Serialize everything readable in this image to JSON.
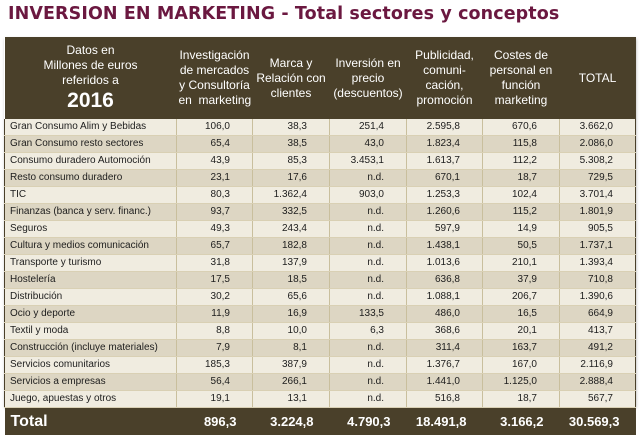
{
  "title": "INVERSION EN MARKETING - Total sectores y conceptos",
  "colors": {
    "title": "#6b1840",
    "header_bg": "#4a402a",
    "row_light": "#f0ece0",
    "row_dark": "#ddd6c3"
  },
  "table": {
    "corner": {
      "lines": [
        "Datos en",
        "Millones de euros",
        "referidos a"
      ],
      "year": "2016"
    },
    "columns": [
      {
        "lines": [
          "Investigación",
          "de mercados",
          "y Consultoría",
          "en  marketing"
        ]
      },
      {
        "lines": [
          "Marca y",
          "Relación con",
          "clientes"
        ]
      },
      {
        "lines": [
          "Inversión en",
          "precio",
          "(descuentos)"
        ]
      },
      {
        "lines": [
          "Publicidad,",
          "comuni-",
          "cación,",
          "promoción"
        ]
      },
      {
        "lines": [
          "Costes de",
          "personal en",
          "función",
          "marketing"
        ]
      },
      {
        "lines": [
          "TOTAL"
        ]
      }
    ],
    "rows": [
      {
        "label": "Gran Consumo Alim y Bebidas",
        "values": [
          "106,0",
          "38,3",
          "251,4",
          "2.595,8",
          "670,6",
          "3.662,0"
        ]
      },
      {
        "label": "Gran Consumo resto sectores",
        "values": [
          "65,4",
          "38,5",
          "43,0",
          "1.823,4",
          "115,8",
          "2.086,0"
        ]
      },
      {
        "label": "Consumo duradero Automoción",
        "values": [
          "43,9",
          "85,3",
          "3.453,1",
          "1.613,7",
          "112,2",
          "5.308,2"
        ]
      },
      {
        "label": "Resto consumo duradero",
        "values": [
          "23,1",
          "17,6",
          "n.d.",
          "670,1",
          "18,7",
          "729,5"
        ]
      },
      {
        "label": "TIC",
        "values": [
          "80,3",
          "1.362,4",
          "903,0",
          "1.253,3",
          "102,4",
          "3.701,4"
        ]
      },
      {
        "label": "Finanzas (banca y serv. financ.)",
        "values": [
          "93,7",
          "332,5",
          "n.d.",
          "1.260,6",
          "115,2",
          "1.801,9"
        ]
      },
      {
        "label": "Seguros",
        "values": [
          "49,3",
          "243,4",
          "n.d.",
          "597,9",
          "14,9",
          "905,5"
        ]
      },
      {
        "label": "Cultura y medios comunicación",
        "values": [
          "65,7",
          "182,8",
          "n.d.",
          "1.438,1",
          "50,5",
          "1.737,1"
        ]
      },
      {
        "label": "Transporte y turismo",
        "values": [
          "31,8",
          "137,9",
          "n.d.",
          "1.013,6",
          "210,1",
          "1.393,4"
        ]
      },
      {
        "label": "Hostelería",
        "values": [
          "17,5",
          "18,5",
          "n.d.",
          "636,8",
          "37,9",
          "710,8"
        ]
      },
      {
        "label": "Distribución",
        "values": [
          "30,2",
          "65,6",
          "n.d.",
          "1.088,1",
          "206,7",
          "1.390,6"
        ]
      },
      {
        "label": "Ocio y deporte",
        "values": [
          "11,9",
          "16,9",
          "133,5",
          "486,0",
          "16,5",
          "664,9"
        ]
      },
      {
        "label": "Textil y moda",
        "values": [
          "8,8",
          "10,0",
          "6,3",
          "368,6",
          "20,1",
          "413,7"
        ]
      },
      {
        "label": "Construcción (incluye materiales)",
        "values": [
          "7,9",
          "8,1",
          "n.d.",
          "311,4",
          "163,7",
          "491,2"
        ]
      },
      {
        "label": "Servicios comunitarios",
        "values": [
          "185,3",
          "387,9",
          "n.d.",
          "1.376,7",
          "167,0",
          "2.116,9"
        ]
      },
      {
        "label": "Servicios a empresas",
        "values": [
          "56,4",
          "266,1",
          "n.d.",
          "1.441,0",
          "1.125,0",
          "2.888,4"
        ]
      },
      {
        "label": "Juego,  apuestas y otros",
        "values": [
          "19,1",
          "13,1",
          "n.d.",
          "516,8",
          "18,7",
          "567,7"
        ]
      }
    ],
    "total": {
      "label": "Total",
      "values": [
        "896,3",
        "3.224,8",
        "4.790,3",
        "18.491,8",
        "3.166,2",
        "30.569,3"
      ]
    }
  }
}
